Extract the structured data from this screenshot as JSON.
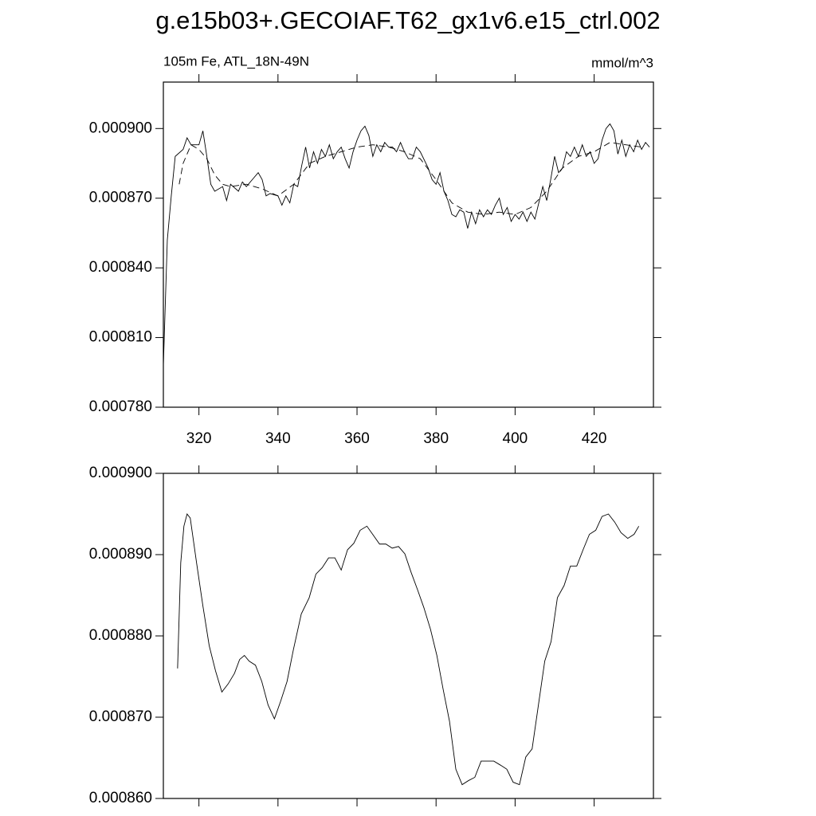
{
  "title": "g.e15b03+.GECOIAF.T62_gx1v6.e15_ctrl.002",
  "chart_data": [
    {
      "type": "line",
      "subtitle_left": "105m Fe, ATL_18N-49N",
      "subtitle_right": "mmol/m^3",
      "xlim": [
        311,
        435
      ],
      "xticks": [
        320,
        340,
        360,
        380,
        400,
        420
      ],
      "xtick_labels": true,
      "ylim": [
        0.00078,
        0.00092
      ],
      "yticks": [
        {
          "value": 0.00078,
          "label": "0.000780"
        },
        {
          "value": 0.00081,
          "label": "0.000810"
        },
        {
          "value": 0.00084,
          "label": "0.000840"
        },
        {
          "value": 0.00087,
          "label": "0.000870"
        },
        {
          "value": 0.0009,
          "label": "0.000900"
        }
      ],
      "series": [
        {
          "color": "#000000",
          "dash": false,
          "x": [
            311,
            312,
            313,
            314,
            316,
            317,
            318,
            320,
            321,
            322,
            323,
            324,
            326,
            327,
            328,
            330,
            331,
            332,
            334,
            335,
            336,
            337,
            338,
            340,
            341,
            342,
            343,
            344,
            345,
            346,
            347,
            348,
            349,
            350,
            351,
            352,
            353,
            354,
            355,
            356,
            357,
            358,
            359,
            360,
            361,
            362,
            363,
            364,
            365,
            366,
            367,
            368,
            369,
            370,
            371,
            372,
            373,
            374,
            375,
            376,
            378,
            379,
            380,
            381,
            382,
            383,
            384,
            385,
            386,
            387,
            388,
            389,
            390,
            391,
            392,
            393,
            394,
            395,
            396,
            397,
            398,
            399,
            400,
            401,
            402,
            403,
            404,
            405,
            406,
            407,
            408,
            409,
            410,
            411,
            412,
            413,
            414,
            415,
            416,
            417,
            418,
            419,
            420,
            421,
            422,
            423,
            424,
            425,
            426,
            427,
            428,
            429,
            430,
            431,
            432,
            433,
            434
          ],
          "values": [
            0.000798,
            0.000852,
            0.000871,
            0.000888,
            0.000891,
            0.000896,
            0.000893,
            0.000893,
            0.000899,
            0.000888,
            0.000876,
            0.000873,
            0.000875,
            0.000869,
            0.000876,
            0.000873,
            0.000877,
            0.000875,
            0.000879,
            0.000881,
            0.000878,
            0.000871,
            0.000872,
            0.000871,
            0.000867,
            0.000871,
            0.000868,
            0.000876,
            0.000875,
            0.000884,
            0.000892,
            0.000883,
            0.00089,
            0.000885,
            0.000891,
            0.000888,
            0.000893,
            0.000887,
            0.00089,
            0.000892,
            0.000887,
            0.000883,
            0.00089,
            0.000895,
            0.000899,
            0.000901,
            0.000897,
            0.000888,
            0.000893,
            0.00089,
            0.000894,
            0.000892,
            0.000892,
            0.00089,
            0.000894,
            0.00089,
            0.000887,
            0.000887,
            0.000892,
            0.00089,
            0.000883,
            0.000878,
            0.000876,
            0.000881,
            0.000873,
            0.000869,
            0.000863,
            0.000862,
            0.000865,
            0.000864,
            0.000857,
            0.000864,
            0.000859,
            0.000865,
            0.000862,
            0.000865,
            0.000863,
            0.000867,
            0.00087,
            0.000863,
            0.000866,
            0.00086,
            0.000863,
            0.000861,
            0.000864,
            0.00086,
            0.000864,
            0.000861,
            0.000868,
            0.000875,
            0.000869,
            0.000878,
            0.000888,
            0.000881,
            0.000883,
            0.00089,
            0.000888,
            0.000892,
            0.000888,
            0.000893,
            0.000888,
            0.00089,
            0.000885,
            0.000887,
            0.000895,
            0.0009,
            0.000902,
            0.000899,
            0.000889,
            0.000895,
            0.000888,
            0.000893,
            0.00089,
            0.000895,
            0.000891,
            0.000894,
            0.000892
          ]
        },
        {
          "color": "#000000",
          "dash": true,
          "x": [
            315,
            316,
            318,
            320,
            322,
            324,
            326,
            328,
            332,
            336,
            340,
            344,
            348,
            352,
            356,
            360,
            364,
            368,
            372,
            376,
            380,
            384,
            388,
            392,
            396,
            400,
            404,
            408,
            412,
            416,
            420,
            424,
            428,
            432
          ],
          "values": [
            0.000876,
            0.000885,
            0.000893,
            0.000891,
            0.000887,
            0.00088,
            0.000876,
            0.000875,
            0.000876,
            0.000874,
            0.000871,
            0.000876,
            0.000885,
            0.000888,
            0.00089,
            0.000892,
            0.000893,
            0.000892,
            0.00089,
            0.000887,
            0.000878,
            0.000868,
            0.000864,
            0.000863,
            0.000864,
            0.000863,
            0.000866,
            0.000873,
            0.000883,
            0.000888,
            0.00089,
            0.000894,
            0.000893,
            0.000892
          ]
        }
      ]
    },
    {
      "type": "line",
      "xlim": [
        311,
        435
      ],
      "xticks": [
        320,
        340,
        360,
        380,
        400,
        420
      ],
      "xtick_labels": false,
      "ylim": [
        0.00086,
        0.0009
      ],
      "yticks": [
        {
          "value": 0.00086,
          "label": "0.000860"
        },
        {
          "value": 0.00087,
          "label": "0.000870"
        },
        {
          "value": 0.00088,
          "label": "0.000880"
        },
        {
          "value": 0.00089,
          "label": "0.000890"
        },
        {
          "value": 0.0009,
          "label": "0.000900"
        }
      ],
      "series": [
        {
          "color": "#000000",
          "dash": false,
          "x": [
            314.6,
            315.4,
            316.2,
            317,
            317.8,
            319.4,
            321,
            322.6,
            324.2,
            325.8,
            327.4,
            329,
            330.3,
            331.5,
            332.7,
            334.3,
            335.9,
            337.5,
            339.1,
            340.7,
            342.3,
            343.9,
            345.9,
            347.9,
            349.6,
            351.2,
            352.8,
            354.4,
            356,
            357.6,
            359.2,
            360.8,
            362.5,
            364.1,
            365.7,
            367.3,
            368.9,
            370.5,
            372.1,
            373.7,
            375.3,
            376.9,
            378.6,
            380.2,
            381.8,
            383.4,
            385,
            386.6,
            388.2,
            389.8,
            391.4,
            393,
            394.6,
            396.3,
            397.9,
            399.5,
            401.1,
            402.7,
            404.3,
            405.9,
            407.5,
            409.1,
            410.7,
            412.4,
            414,
            415.6,
            417.2,
            418.8,
            420.4,
            422,
            423.6,
            425.2,
            426.8,
            428.5,
            430.1,
            431.3
          ],
          "values": [
            0.000876,
            0.000889,
            0.0008935,
            0.000895,
            0.0008945,
            0.000889,
            0.0008837,
            0.0008788,
            0.0008757,
            0.0008731,
            0.0008741,
            0.0008754,
            0.0008771,
            0.0008776,
            0.0008769,
            0.0008764,
            0.0008744,
            0.0008715,
            0.0008698,
            0.000872,
            0.0008744,
            0.0008783,
            0.0008827,
            0.0008847,
            0.0008876,
            0.0008884,
            0.0008896,
            0.0008896,
            0.0008881,
            0.0008906,
            0.0008914,
            0.000893,
            0.0008935,
            0.0008924,
            0.0008913,
            0.0008913,
            0.0008908,
            0.000891,
            0.0008901,
            0.0008878,
            0.0008857,
            0.0008835,
            0.0008808,
            0.0008776,
            0.0008734,
            0.0008695,
            0.0008636,
            0.0008617,
            0.0008622,
            0.0008626,
            0.0008646,
            0.0008646,
            0.0008646,
            0.0008641,
            0.0008636,
            0.000862,
            0.0008617,
            0.0008651,
            0.0008661,
            0.0008715,
            0.0008769,
            0.0008793,
            0.0008847,
            0.0008862,
            0.0008886,
            0.0008886,
            0.0008906,
            0.0008925,
            0.000893,
            0.0008947,
            0.000895,
            0.000894,
            0.0008927,
            0.000892,
            0.0008925,
            0.0008935
          ]
        }
      ]
    }
  ]
}
